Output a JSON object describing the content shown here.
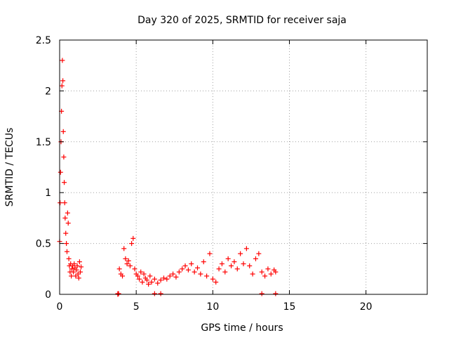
{
  "chart_data": {
    "type": "scatter",
    "title": "Day 320 of 2025, SRMTID for receiver saja",
    "xlabel": "GPS time / hours",
    "ylabel": "SRMTID / TECUs",
    "xlim": [
      0,
      24
    ],
    "ylim": [
      0,
      2.5
    ],
    "x_ticks": [
      0,
      5,
      10,
      15,
      20
    ],
    "x_tick_labels": [
      "0",
      "5",
      "10",
      "15",
      "20"
    ],
    "y_ticks": [
      0,
      0.5,
      1,
      1.5,
      2,
      2.5
    ],
    "y_tick_labels": [
      "0",
      "0.5",
      "1",
      "1.5",
      "2",
      "2.5"
    ],
    "grid": true,
    "marker": "plus",
    "color": "#ff0000",
    "series": [
      {
        "name": "SRMTID",
        "x": [
          0.0,
          0.03,
          0.06,
          0.09,
          0.12,
          0.15,
          0.18,
          0.21,
          0.24,
          0.27,
          0.3,
          0.33,
          0.36,
          0.4,
          0.44,
          0.48,
          0.52,
          0.56,
          0.6,
          0.64,
          0.68,
          0.72,
          0.76,
          0.8,
          0.85,
          0.9,
          0.95,
          1.0,
          1.05,
          1.1,
          1.15,
          1.2,
          1.25,
          1.3,
          1.35,
          1.4,
          3.8,
          3.9,
          4.0,
          4.1,
          4.2,
          4.3,
          4.4,
          4.5,
          4.6,
          4.7,
          4.8,
          4.9,
          5.0,
          5.1,
          5.2,
          5.3,
          5.4,
          5.5,
          5.6,
          5.7,
          5.8,
          5.9,
          6.0,
          6.2,
          6.4,
          6.6,
          6.8,
          7.0,
          7.2,
          7.4,
          7.6,
          7.8,
          8.0,
          8.2,
          8.4,
          8.6,
          8.8,
          9.0,
          9.2,
          9.4,
          9.6,
          9.8,
          10.0,
          10.2,
          10.4,
          10.6,
          10.8,
          11.0,
          11.2,
          11.4,
          11.6,
          11.8,
          12.0,
          12.2,
          12.4,
          12.6,
          12.8,
          13.0,
          13.2,
          13.4,
          13.6,
          13.8,
          14.0,
          14.1
        ],
        "y": [
          0.52,
          0.9,
          1.2,
          1.5,
          1.8,
          2.05,
          2.3,
          2.1,
          1.6,
          1.35,
          1.1,
          0.9,
          0.75,
          0.6,
          0.5,
          0.42,
          0.8,
          0.7,
          0.35,
          0.28,
          0.22,
          0.3,
          0.18,
          0.25,
          0.28,
          0.22,
          0.3,
          0.26,
          0.18,
          0.24,
          0.28,
          0.2,
          0.16,
          0.32,
          0.22,
          0.27,
          0.0,
          0.25,
          0.2,
          0.18,
          0.45,
          0.35,
          0.3,
          0.33,
          0.28,
          0.5,
          0.55,
          0.25,
          0.2,
          0.18,
          0.15,
          0.22,
          0.12,
          0.2,
          0.16,
          0.14,
          0.1,
          0.18,
          0.12,
          0.15,
          0.11,
          0.14,
          0.16,
          0.15,
          0.18,
          0.2,
          0.17,
          0.22,
          0.25,
          0.28,
          0.24,
          0.3,
          0.22,
          0.26,
          0.2,
          0.32,
          0.18,
          0.4,
          0.15,
          0.12,
          0.25,
          0.3,
          0.22,
          0.35,
          0.28,
          0.32,
          0.25,
          0.4,
          0.3,
          0.45,
          0.28,
          0.2,
          0.35,
          0.4,
          0.22,
          0.18,
          0.25,
          0.2,
          0.24,
          0.22
        ],
        "zero_x": [
          3.8,
          3.85,
          6.2,
          6.6,
          13.2,
          14.1
        ]
      }
    ]
  }
}
